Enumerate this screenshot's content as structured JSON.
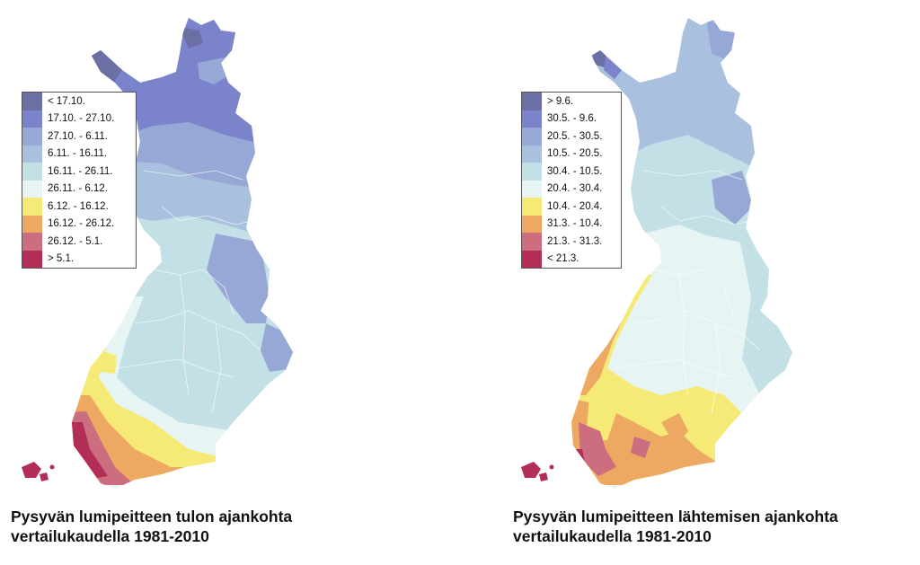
{
  "maps": [
    {
      "caption_line1": "Pysyvän lumipeitteen tulon ajankohta",
      "caption_line2": "vertailukaudella 1981-2010",
      "legend": [
        {
          "label": "< 17.10.",
          "color": "#6b6fa3"
        },
        {
          "label": "17.10. - 27.10.",
          "color": "#7b83cb"
        },
        {
          "label": "27.10. - 6.11.",
          "color": "#98a8d6"
        },
        {
          "label": "6.11. - 16.11.",
          "color": "#a9c1df"
        },
        {
          "label": "16.11. - 26.11.",
          "color": "#c2e0e6"
        },
        {
          "label": "26.11. - 6.12.",
          "color": "#e6f5f4"
        },
        {
          "label": "6.12. - 16.12.",
          "color": "#f5ea76"
        },
        {
          "label": "16.12. - 26.12.",
          "color": "#eda862"
        },
        {
          "label": "26.12. - 5.1.",
          "color": "#cc6e80"
        },
        {
          "label": "> 5.1.",
          "color": "#b22e57"
        }
      ]
    },
    {
      "caption_line1": "Pysyvän lumipeitteen lähtemisen ajankohta",
      "caption_line2": "vertailukaudella 1981-2010",
      "legend": [
        {
          "label": "> 9.6.",
          "color": "#6b6fa3"
        },
        {
          "label": "30.5. - 9.6.",
          "color": "#7b83cb"
        },
        {
          "label": "20.5. - 30.5.",
          "color": "#98a8d6"
        },
        {
          "label": "10.5. - 20.5.",
          "color": "#a9c1df"
        },
        {
          "label": "30.4. - 10.5.",
          "color": "#c2e0e6"
        },
        {
          "label": "20.4. - 30.4.",
          "color": "#e6f5f4"
        },
        {
          "label": "10.4. - 20.4.",
          "color": "#f5ea76"
        },
        {
          "label": "31.3. - 10.4.",
          "color": "#eda862"
        },
        {
          "label": "21.3. - 31.3.",
          "color": "#cc6e80"
        },
        {
          "label": "< 21.3.",
          "color": "#b22e57"
        }
      ]
    }
  ]
}
